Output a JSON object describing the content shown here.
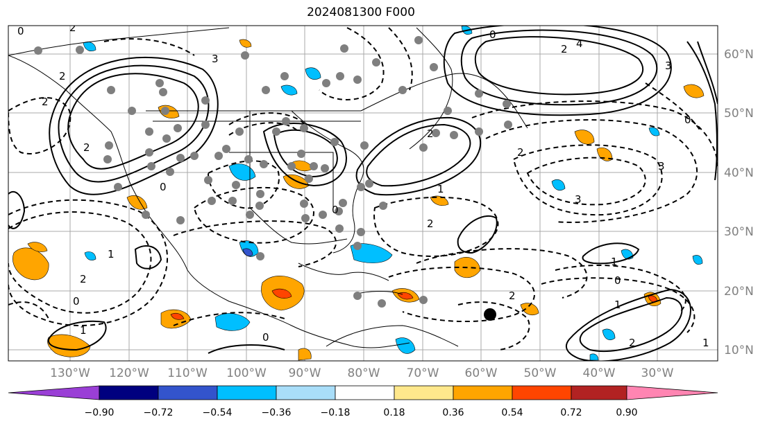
{
  "title": "2024081300 F000",
  "lat_labels": [
    "60°N",
    "50°N",
    "40°N",
    "30°N",
    "20°N",
    "10°N"
  ],
  "lon_labels": [
    "130°W",
    "120°W",
    "110°W",
    "100°W",
    "90°W",
    "80°W",
    "70°W",
    "60°W",
    "50°W",
    "40°W",
    "30°W"
  ],
  "colorbar": {
    "ticks": [
      "−0.90",
      "−0.72",
      "−0.54",
      "−0.36",
      "−0.18",
      "0.18",
      "0.36",
      "0.54",
      "0.72",
      "0.90"
    ],
    "colors": [
      "#9a3fd6",
      "#00007f",
      "#3354cc",
      "#00bfff",
      "#a9def9",
      "#ffffff",
      "#ffe88c",
      "#ffa500",
      "#ff4500",
      "#b22222",
      "#ff85b2"
    ]
  },
  "contour_labels": {
    "l1": "0",
    "l2": "2",
    "l3": "2",
    "l4": "2",
    "l5": "3",
    "l6": "2",
    "l7": "0",
    "l8": "0",
    "l9": "4",
    "l10": "0",
    "l11": "2",
    "l12": "2",
    "l13": "2",
    "l14": "3",
    "l15": "3",
    "l16": "0",
    "l17": "1",
    "l18": "2",
    "l19": "0",
    "l20": "1",
    "l21": "2",
    "l22": "1",
    "l23": "0",
    "l24": "1",
    "l25": "1",
    "l26": "2",
    "l27": "1",
    "l28": "3",
    "l29": "2",
    "l30": "0"
  }
}
